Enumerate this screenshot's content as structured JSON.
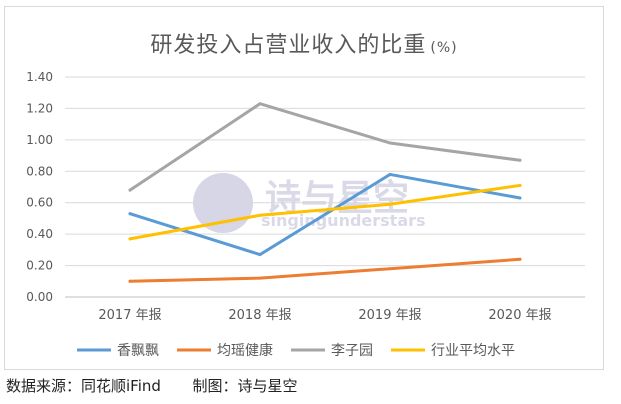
{
  "chart_data": {
    "type": "line",
    "title": "研发投入占营业收入的比重",
    "title_unit": "(%)",
    "categories": [
      "2017 年报",
      "2018 年报",
      "2019 年报",
      "2020 年报"
    ],
    "ylim": [
      0,
      1.4
    ],
    "yticks": [
      "0.00",
      "0.20",
      "0.40",
      "0.60",
      "0.80",
      "1.00",
      "1.20",
      "1.40"
    ],
    "grid": true,
    "legend_position": "bottom",
    "series": [
      {
        "name": "香飘飘",
        "color": "#5b9bd5",
        "values": [
          0.53,
          0.27,
          0.78,
          0.63
        ]
      },
      {
        "name": "均瑶健康",
        "color": "#ed7d31",
        "values": [
          0.1,
          0.12,
          0.18,
          0.24
        ]
      },
      {
        "name": "李子园",
        "color": "#a5a5a5",
        "values": [
          0.68,
          1.23,
          0.98,
          0.87
        ]
      },
      {
        "name": "行业平均水平",
        "color": "#ffc000",
        "values": [
          0.37,
          0.52,
          0.59,
          0.71
        ]
      }
    ]
  },
  "watermark": {
    "cn": "诗与星空",
    "en": "singingunderstars"
  },
  "source": {
    "data_source": "数据来源：同花顺iFind",
    "made_by": "制图：诗与星空"
  }
}
